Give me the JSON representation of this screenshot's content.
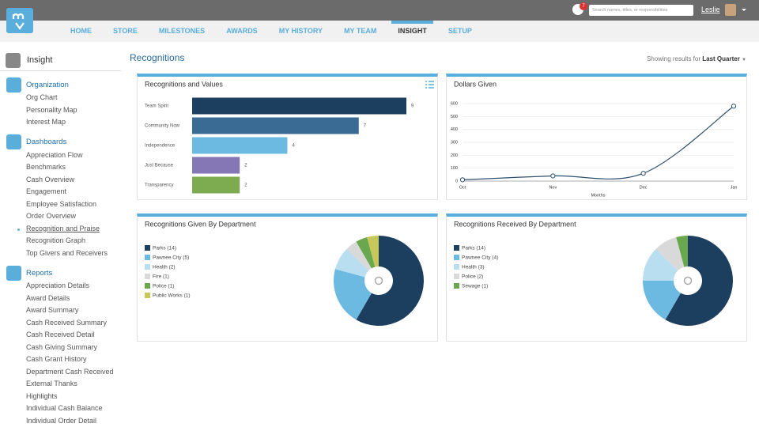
{
  "header": {
    "notifications": 7,
    "search_placeholder": "Search names, titles, or responsibilities",
    "user": "Leslie"
  },
  "nav": {
    "items": [
      "HOME",
      "STORE",
      "MILESTONES",
      "AWARDS",
      "MY HISTORY",
      "MY TEAM",
      "INSIGHT",
      "SETUP"
    ],
    "active": 6
  },
  "sidebar": {
    "title": "Insight",
    "sections": [
      {
        "title": "Organization",
        "items": [
          "Org Chart",
          "Personality Map",
          "Interest Map"
        ]
      },
      {
        "title": "Dashboards",
        "items": [
          "Appreciation Flow",
          "Benchmarks",
          "Cash Overview",
          "Engagement",
          "Employee Satisfaction",
          "Order Overview",
          "Recognition and Praise",
          "Recognition Graph",
          "Top Givers and Receivers"
        ],
        "active": 6
      },
      {
        "title": "Reports",
        "items": [
          "Appreciation Details",
          "Award Details",
          "Award Summary",
          "Cash Received Summary",
          "Cash Received Detail",
          "Cash Giving Summary",
          "Cash Grant History",
          "Department Cash Received",
          "External Thanks",
          "Highlights",
          "Individual Cash Balance",
          "Individual Order Detail"
        ]
      }
    ]
  },
  "page": {
    "title": "Recognitions",
    "filter_label": "Showing results for",
    "filter_value": "Last Quarter"
  },
  "chart_data": [
    {
      "type": "bar",
      "title": "Recognitions and Values",
      "categories": [
        "Team Spirit",
        "Community Now",
        "Independence",
        "Just Because",
        "Transparency"
      ],
      "values": [
        9,
        7,
        4,
        2,
        2
      ],
      "colors": [
        "#1c3f5f",
        "#3a6b94",
        "#6cbae2",
        "#8576b6",
        "#7cac4f"
      ]
    },
    {
      "type": "line",
      "title": "Dollars Given",
      "categories": [
        "Oct",
        "Nov",
        "Dec",
        "Jan"
      ],
      "values": [
        10,
        40,
        60,
        580
      ],
      "color": "#2d4f6e",
      "ylim": [
        0,
        600
      ],
      "yticks": [
        0,
        100,
        200,
        300,
        400,
        500,
        600
      ],
      "xlabel": "Months",
      "grid": true
    },
    {
      "type": "pie",
      "title": "Recognitions Given By Department",
      "categories": [
        "Parks (14)",
        "Pawnee City (5)",
        "Health (2)",
        "Fire (1)",
        "Police (1)",
        "Public Works (1)"
      ],
      "values": [
        14,
        5,
        2,
        1,
        1,
        1
      ],
      "colors": [
        "#1c3f5f",
        "#6cbae2",
        "#b9def0",
        "#d9d9d9",
        "#6aa84f",
        "#c8c85a"
      ]
    },
    {
      "type": "pie",
      "title": "Recognitions Received By Department",
      "categories": [
        "Parks (14)",
        "Pawnee City (4)",
        "Health (3)",
        "Police (2)",
        "Sewage (1)"
      ],
      "values": [
        14,
        4,
        3,
        2,
        1
      ],
      "colors": [
        "#1c3f5f",
        "#6cbae2",
        "#b9def0",
        "#d9d9d9",
        "#6aa84f"
      ]
    }
  ]
}
